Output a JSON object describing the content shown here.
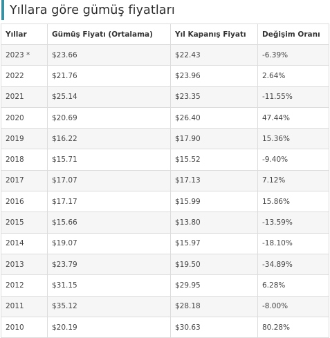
{
  "section": {
    "title": "Yıllara göre gümüş fiyatları"
  },
  "table": {
    "headers": [
      "Yıllar",
      "Gümüş Fiyatı (Ortalama)",
      "Yıl Kapanış Fiyatı",
      "Değişim Oranı"
    ],
    "rows": [
      [
        "2023 *",
        "$23.66",
        "$22.43",
        "-6.39%"
      ],
      [
        "2022",
        "$21.76",
        "$23.96",
        "2.64%"
      ],
      [
        "2021",
        "$25.14",
        "$23.35",
        "-11.55%"
      ],
      [
        "2020",
        "$20.69",
        "$26.40",
        "47.44%"
      ],
      [
        "2019",
        "$16.22",
        "$17.90",
        "15.36%"
      ],
      [
        "2018",
        "$15.71",
        "$15.52",
        "-9.40%"
      ],
      [
        "2017",
        "$17.07",
        "$17.13",
        "7.12%"
      ],
      [
        "2016",
        "$17.17",
        "$15.99",
        "15.86%"
      ],
      [
        "2015",
        "$15.66",
        "$13.80",
        "-13.59%"
      ],
      [
        "2014",
        "$19.07",
        "$15.97",
        "-18.10%"
      ],
      [
        "2013",
        "$23.79",
        "$19.50",
        "-34.89%"
      ],
      [
        "2012",
        "$31.15",
        "$29.95",
        "6.28%"
      ],
      [
        "2011",
        "$35.12",
        "$28.18",
        "-8.00%"
      ],
      [
        "2010",
        "$20.19",
        "$30.63",
        "80.28%"
      ]
    ]
  },
  "colors": {
    "accent": "#3a8fa0",
    "stripe": "#f6f6f6",
    "border": "#dcdcdc"
  }
}
